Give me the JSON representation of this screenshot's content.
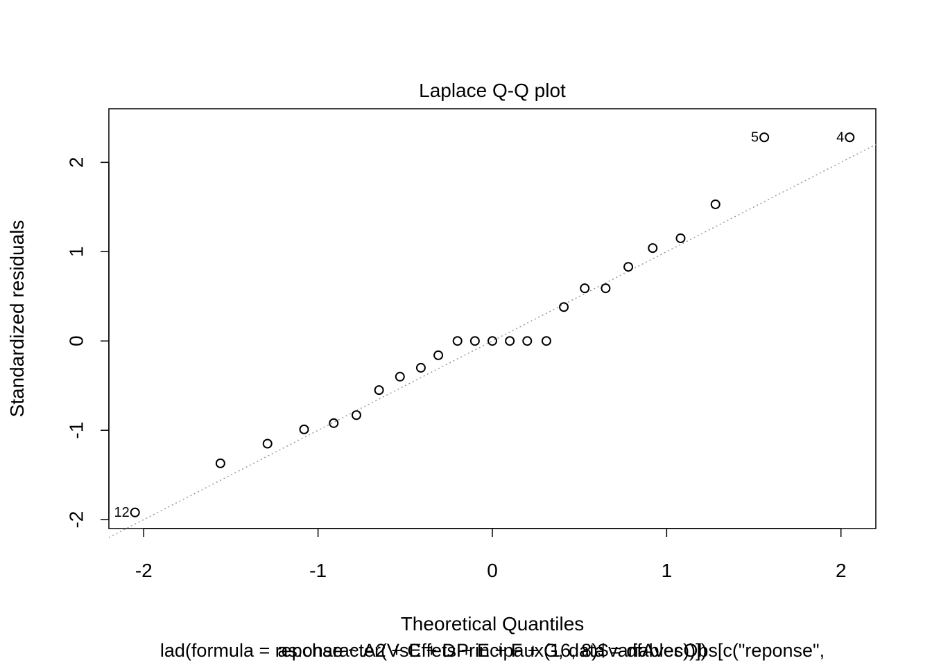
{
  "chart_data": {
    "type": "scatter",
    "title": "Laplace Q-Q plot",
    "xlabel": "Theoretical Quantiles",
    "ylabel": "Standardized residuals",
    "caption_lines": [
      "lad(formula = reponse ~ A2 + C + D + E + F + G, data = dfAvecObs[c(\"reponse\",",
      "as.character(VsEffetsPrincipaux(16, 8)$variables))])"
    ],
    "xlim": [
      -2.2,
      2.2
    ],
    "ylim": [
      -2.1,
      2.6
    ],
    "xticks": [
      -2,
      -1,
      0,
      1,
      2
    ],
    "yticks": [
      -2,
      -1,
      0,
      1,
      2
    ],
    "x": [
      -2.05,
      -1.56,
      -1.29,
      -1.08,
      -0.91,
      -0.78,
      -0.65,
      -0.53,
      -0.41,
      -0.31,
      -0.2,
      -0.1,
      0.0,
      0.1,
      0.2,
      0.31,
      0.41,
      0.53,
      0.65,
      0.78,
      0.92,
      1.08,
      1.28,
      1.56,
      2.05
    ],
    "y": [
      -1.92,
      -1.37,
      -1.15,
      -0.99,
      -0.92,
      -0.83,
      -0.55,
      -0.4,
      -0.3,
      -0.16,
      0.0,
      0.0,
      0.0,
      0.0,
      0.0,
      0.0,
      0.38,
      0.59,
      0.59,
      0.83,
      1.04,
      1.15,
      1.53,
      2.28,
      2.28
    ],
    "point_labels": [
      {
        "index": 0,
        "text": "12"
      },
      {
        "index": 23,
        "text": "5"
      },
      {
        "index": 24,
        "text": "4"
      }
    ],
    "reference_line": {
      "slope": 1.0,
      "intercept": 0.0,
      "style": "dotted",
      "color": "#999999"
    },
    "grid": false,
    "legend": "none"
  }
}
